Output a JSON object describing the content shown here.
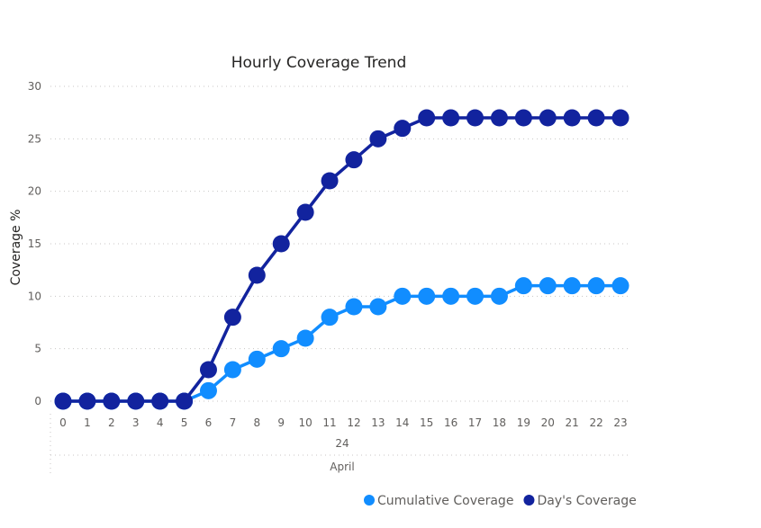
{
  "chart_data": {
    "type": "line",
    "title": "Hourly Coverage Trend",
    "xlabel": "",
    "ylabel": "Coverage %",
    "x": [
      0,
      1,
      2,
      3,
      4,
      5,
      6,
      7,
      8,
      9,
      10,
      11,
      12,
      13,
      14,
      15,
      16,
      17,
      18,
      19,
      20,
      21,
      22,
      23
    ],
    "x_group_labels": [
      "24",
      "April"
    ],
    "ylim": [
      0,
      30
    ],
    "yticks": [
      0,
      5,
      10,
      15,
      20,
      25,
      30
    ],
    "grid": true,
    "legend_position": "bottom-right",
    "series": [
      {
        "name": "Cumulative Coverage",
        "color": "#118DFF",
        "values": [
          0,
          0,
          0,
          0,
          0,
          0,
          1,
          3,
          4,
          5,
          6,
          8,
          9,
          9,
          10,
          10,
          10,
          10,
          10,
          11,
          11,
          11,
          11,
          11
        ]
      },
      {
        "name": "Day's Coverage",
        "color": "#12239E",
        "values": [
          0,
          0,
          0,
          0,
          0,
          0,
          3,
          8,
          12,
          15,
          18,
          21,
          23,
          25,
          26,
          27,
          27,
          27,
          27,
          27,
          27,
          27,
          27,
          27
        ]
      }
    ]
  }
}
